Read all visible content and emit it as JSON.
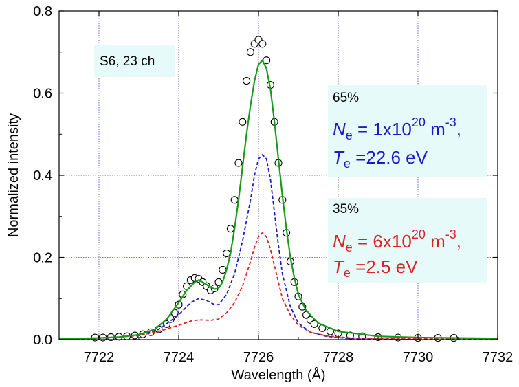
{
  "chart_data": {
    "type": "line",
    "xlabel": "Wavelength (Å)",
    "ylabel": "Normalized intensity",
    "xlim": [
      7721,
      7732
    ],
    "ylim": [
      0,
      0.8
    ],
    "xticks": [
      7722,
      7724,
      7726,
      7728,
      7730,
      7732
    ],
    "yticks": [
      0.0,
      0.2,
      0.4,
      0.6,
      0.8
    ],
    "xtick_labels": [
      "7722",
      "7724",
      "7726",
      "7728",
      "7730",
      "7732"
    ],
    "ytick_labels": [
      "0.0",
      "0.2",
      "0.4",
      "0.6",
      "0.8"
    ],
    "grid": true,
    "series": [
      {
        "style": "open-circles",
        "color": "#000000",
        "x": [
          7721.9,
          7722.1,
          7722.3,
          7722.5,
          7722.7,
          7722.9,
          7723.1,
          7723.3,
          7723.5,
          7723.7,
          7723.8,
          7723.9,
          7724.0,
          7724.1,
          7724.2,
          7724.3,
          7724.4,
          7724.5,
          7724.6,
          7724.7,
          7724.8,
          7724.9,
          7725.0,
          7725.1,
          7725.2,
          7725.3,
          7725.4,
          7725.5,
          7725.6,
          7725.7,
          7725.8,
          7725.9,
          7726.0,
          7726.1,
          7726.2,
          7726.3,
          7726.4,
          7726.5,
          7726.6,
          7726.7,
          7726.8,
          7726.9,
          7727.0,
          7727.1,
          7727.2,
          7727.3,
          7727.4,
          7727.6,
          7727.8,
          7728.0,
          7728.3,
          7728.6,
          7729.0,
          7729.5,
          7730.0,
          7730.5,
          7730.9
        ],
        "y": [
          0.005,
          0.005,
          0.006,
          0.007,
          0.008,
          0.01,
          0.013,
          0.018,
          0.025,
          0.038,
          0.05,
          0.065,
          0.085,
          0.11,
          0.13,
          0.145,
          0.15,
          0.148,
          0.14,
          0.13,
          0.12,
          0.125,
          0.14,
          0.17,
          0.21,
          0.27,
          0.34,
          0.43,
          0.53,
          0.63,
          0.7,
          0.72,
          0.73,
          0.72,
          0.68,
          0.62,
          0.53,
          0.43,
          0.34,
          0.26,
          0.19,
          0.14,
          0.105,
          0.08,
          0.06,
          0.048,
          0.038,
          0.028,
          0.02,
          0.015,
          0.01,
          0.008,
          0.006,
          0.005,
          0.004,
          0.004,
          0.004
        ]
      },
      {
        "style": "solid",
        "color": "#1a9a1a",
        "x": [
          7721.0,
          7722.0,
          7722.5,
          7723.0,
          7723.4,
          7723.7,
          7724.0,
          7724.2,
          7724.4,
          7724.5,
          7724.6,
          7724.8,
          7724.9,
          7725.0,
          7725.1,
          7725.2,
          7725.3,
          7725.4,
          7725.5,
          7725.6,
          7725.7,
          7725.8,
          7725.9,
          7726.0,
          7726.1,
          7726.2,
          7726.3,
          7726.4,
          7726.5,
          7726.6,
          7726.7,
          7726.8,
          7726.9,
          7727.0,
          7727.2,
          7727.5,
          7728.0,
          7729.0,
          7730.0,
          7731.0,
          7732.0
        ],
        "y": [
          0.002,
          0.004,
          0.006,
          0.012,
          0.025,
          0.05,
          0.09,
          0.12,
          0.14,
          0.145,
          0.14,
          0.128,
          0.123,
          0.125,
          0.14,
          0.17,
          0.21,
          0.27,
          0.34,
          0.42,
          0.5,
          0.57,
          0.63,
          0.67,
          0.68,
          0.66,
          0.61,
          0.53,
          0.44,
          0.35,
          0.27,
          0.2,
          0.15,
          0.11,
          0.07,
          0.04,
          0.02,
          0.008,
          0.005,
          0.004,
          0.003
        ]
      },
      {
        "style": "dashed",
        "color": "#1a1acc",
        "x": [
          7721.0,
          7722.0,
          7723.0,
          7723.5,
          7724.0,
          7724.3,
          7724.5,
          7724.7,
          7724.9,
          7725.0,
          7725.2,
          7725.4,
          7725.6,
          7725.8,
          7725.9,
          7726.0,
          7726.1,
          7726.2,
          7726.3,
          7726.4,
          7726.5,
          7726.6,
          7726.8,
          7727.0,
          7727.3,
          7727.7,
          7728.2,
          7729.0,
          7730.0
        ],
        "y": [
          0.001,
          0.003,
          0.01,
          0.025,
          0.06,
          0.09,
          0.1,
          0.095,
          0.085,
          0.085,
          0.11,
          0.16,
          0.24,
          0.34,
          0.4,
          0.44,
          0.45,
          0.44,
          0.39,
          0.31,
          0.23,
          0.16,
          0.08,
          0.04,
          0.018,
          0.008,
          0.003,
          0.001,
          0.0
        ]
      },
      {
        "style": "dashed",
        "color": "#dd2222",
        "x": [
          7721.0,
          7722.0,
          7723.0,
          7723.5,
          7724.0,
          7724.3,
          7724.5,
          7724.8,
          7725.0,
          7725.2,
          7725.4,
          7725.6,
          7725.8,
          7725.9,
          7726.0,
          7726.1,
          7726.2,
          7726.3,
          7726.4,
          7726.5,
          7726.6,
          7726.8,
          7727.0,
          7727.3,
          7727.7,
          7728.3,
          7729.0,
          7730.0,
          7731.0,
          7732.0
        ],
        "y": [
          0.001,
          0.003,
          0.01,
          0.02,
          0.035,
          0.045,
          0.048,
          0.047,
          0.05,
          0.065,
          0.09,
          0.13,
          0.19,
          0.225,
          0.25,
          0.26,
          0.25,
          0.22,
          0.18,
          0.14,
          0.1,
          0.06,
          0.035,
          0.018,
          0.009,
          0.004,
          0.003,
          0.002,
          0.001,
          0.001
        ]
      }
    ],
    "annotations": {
      "label": "S6, 23 ch",
      "blue": {
        "percent": "65%",
        "ne_sym": "N",
        "ne_sub": "e",
        "ne_eq": " = 1x10",
        "ne_exp": "20",
        "ne_unit": " m",
        "ne_unit_exp": "-3",
        "comma": ",",
        "te_sym": "T",
        "te_sub": "e",
        "te_val": " =22.6 eV"
      },
      "red": {
        "percent": "35%",
        "ne_sym": "N",
        "ne_sub": "e",
        "ne_eq": " = 6x10",
        "ne_exp": "20",
        "ne_unit": " m",
        "ne_unit_exp": "-3",
        "comma": ",",
        "te_sym": "T",
        "te_sub": "e",
        "te_val": " =2.5 eV"
      }
    },
    "colors": {
      "grid": "#4444cc",
      "annotation_bg": "#e6fafa",
      "blue_text": "#1a1acc",
      "red_text": "#dd2222"
    }
  }
}
